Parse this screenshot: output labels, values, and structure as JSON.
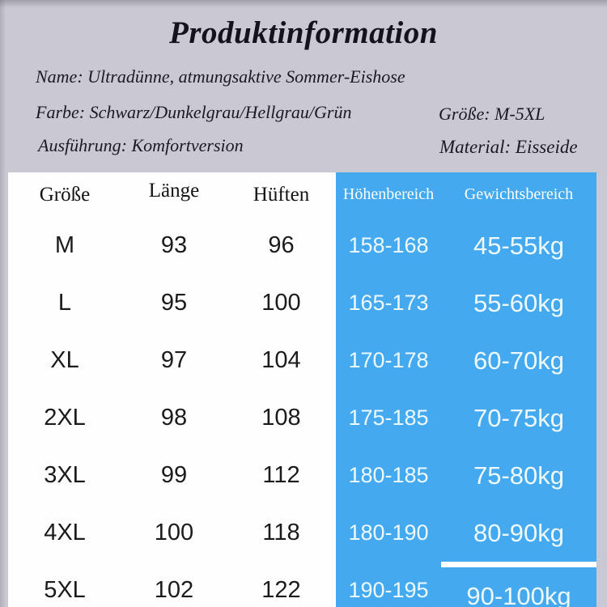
{
  "page": {
    "background_color": "#cac8d2",
    "accent_blue": "#44a9ef",
    "table_background": "#fefefe"
  },
  "header": {
    "title": "Produktinformation",
    "info": {
      "name": "Name: Ultradünne, atmungsaktive Sommer-Eishose",
      "color": "Farbe: Schwarz/Dunkelgrau/Hellgrau/Grün",
      "size_range": "Größe: M-5XL",
      "version": "Ausführung: Komfortversion",
      "material": "Material: Eisseide"
    }
  },
  "size_table": {
    "columns": [
      "Größe",
      "Länge",
      "Hüften",
      "Höhenbereich",
      "Gewichtsbereich"
    ],
    "rows": [
      {
        "size": "M",
        "length": "93",
        "hips": "96",
        "height": "158-168",
        "weight": "45-55kg"
      },
      {
        "size": "L",
        "length": "95",
        "hips": "100",
        "height": "165-173",
        "weight": "55-60kg"
      },
      {
        "size": "XL",
        "length": "97",
        "hips": "104",
        "height": "170-178",
        "weight": "60-70kg"
      },
      {
        "size": "2XL",
        "length": "98",
        "hips": "108",
        "height": "175-185",
        "weight": "70-75kg"
      },
      {
        "size": "3XL",
        "length": "99",
        "hips": "112",
        "height": "180-185",
        "weight": "75-80kg"
      },
      {
        "size": "4XL",
        "length": "100",
        "hips": "118",
        "height": "180-190",
        "weight": "80-90kg"
      },
      {
        "size": "5XL",
        "length": "102",
        "hips": "122",
        "height": "190-195",
        "weight": "90-100kg"
      }
    ]
  }
}
